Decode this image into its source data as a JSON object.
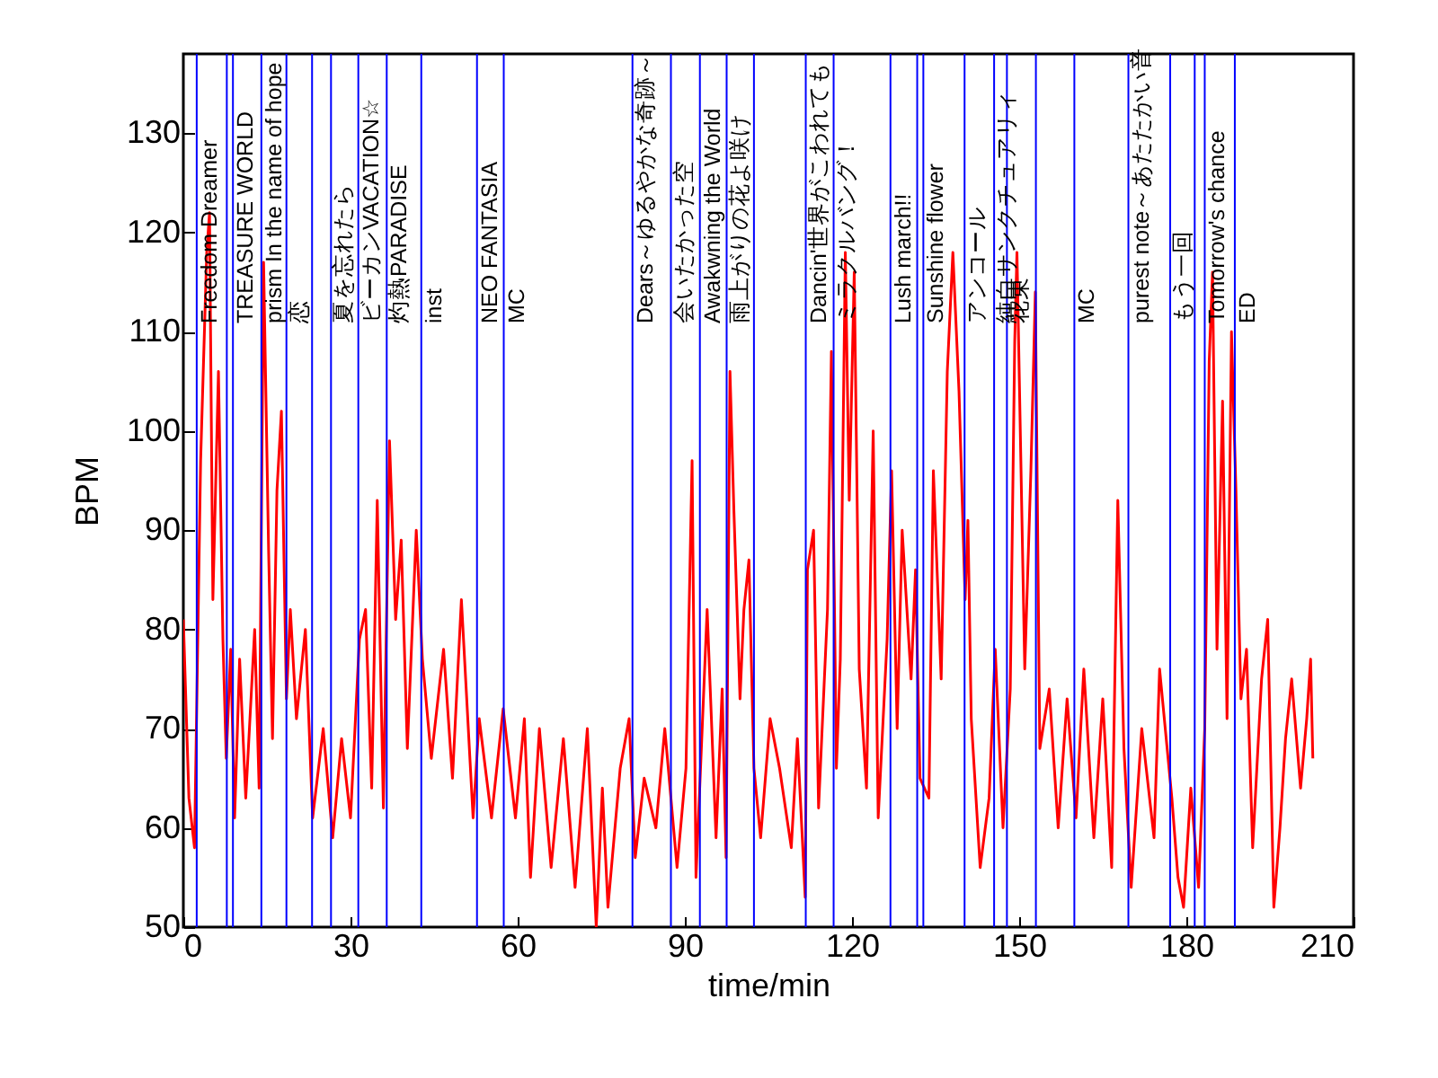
{
  "chart_data": {
    "type": "line",
    "xlabel": "time/min",
    "ylabel": "BPM",
    "xlim": [
      0,
      210
    ],
    "ylim": [
      50,
      138
    ],
    "xticks": [
      0,
      30,
      60,
      90,
      120,
      150,
      180,
      210
    ],
    "yticks": [
      50,
      60,
      70,
      80,
      90,
      100,
      110,
      120,
      130
    ],
    "series": [
      {
        "color": "#ff0000",
        "x": [
          0,
          1.0,
          2.0,
          3.1,
          4.2,
          4.7,
          5.3,
          6.3,
          7.1,
          7.7,
          8.5,
          9.2,
          10.1,
          11.2,
          12.8,
          13.6,
          14.4,
          15.3,
          16.0,
          16.8,
          17.6,
          18.5,
          19.2,
          20.3,
          21.9,
          23.2,
          25.1,
          26.8,
          28.4,
          30.0,
          31.6,
          32.7,
          33.8,
          34.8,
          35.9,
          37.0,
          38.1,
          39.1,
          40.2,
          41.8,
          42.9,
          44.5,
          46.7,
          48.3,
          49.9,
          52.0,
          53.1,
          55.3,
          57.4,
          59.6,
          61.2,
          62.3,
          63.9,
          66.0,
          68.2,
          70.3,
          72.5,
          74.1,
          75.2,
          76.2,
          78.4,
          80.0,
          81.1,
          82.7,
          84.8,
          86.4,
          88.6,
          90.2,
          91.3,
          92.0,
          94.0,
          95.6,
          96.7,
          97.4,
          98.1,
          98.8,
          99.9,
          100.6,
          101.5,
          102.4,
          103.6,
          105.3,
          107.0,
          109.1,
          110.2,
          111.6,
          112.0,
          113.1,
          114.0,
          115.6,
          116.3,
          117.2,
          117.9,
          118.8,
          119.5,
          120.4,
          121.3,
          122.6,
          123.8,
          124.7,
          126.3,
          127.1,
          128.1,
          129.0,
          130.6,
          131.4,
          132.2,
          133.8,
          134.6,
          136.0,
          137.1,
          138.1,
          139.2,
          140.3,
          140.8,
          141.4,
          143.0,
          144.6,
          145.7,
          147.1,
          148.4,
          149.2,
          149.6,
          151.0,
          152.1,
          152.9,
          153.7,
          155.4,
          157.0,
          158.6,
          160.2,
          161.6,
          163.4,
          165.0,
          166.6,
          167.7,
          168.8,
          170.1,
          172.0,
          174.2,
          175.2,
          177.4,
          178.5,
          179.5,
          180.8,
          182.2,
          183.3,
          184.1,
          184.7,
          185.5,
          186.5,
          187.3,
          188.1,
          188.9,
          189.8,
          190.8,
          191.9,
          193.5,
          194.6,
          195.7,
          196.8,
          197.8,
          198.9,
          200.5,
          201.6,
          202.3,
          202.7
        ],
        "values": [
          81,
          63,
          58,
          97,
          118,
          122,
          83,
          106,
          79,
          67,
          78,
          61,
          77,
          63,
          80,
          64,
          117,
          88,
          69,
          94,
          102,
          73,
          82,
          71,
          80,
          61,
          70,
          59,
          69,
          61,
          79,
          82,
          64,
          93,
          62,
          99,
          81,
          89,
          68,
          90,
          77,
          67,
          78,
          65,
          83,
          61,
          71,
          61,
          72,
          61,
          71,
          55,
          70,
          56,
          69,
          54,
          70,
          50,
          64,
          52,
          66,
          71,
          57,
          65,
          60,
          70,
          56,
          66,
          97,
          55,
          82,
          59,
          74,
          57,
          106,
          92,
          73,
          82,
          87,
          66,
          59,
          71,
          66,
          58,
          69,
          53,
          86,
          90,
          62,
          82,
          108,
          66,
          77,
          118,
          93,
          116,
          76,
          64,
          100,
          61,
          79,
          96,
          70,
          90,
          75,
          86,
          65,
          63,
          96,
          75,
          106,
          118,
          104,
          83,
          91,
          71,
          56,
          63,
          78,
          60,
          74,
          109,
          118,
          76,
          96,
          114,
          68,
          74,
          60,
          73,
          61,
          76,
          59,
          73,
          56,
          93,
          68,
          54,
          70,
          59,
          76,
          63,
          55,
          52,
          64,
          54,
          70,
          107,
          116,
          78,
          103,
          71,
          110,
          94,
          73,
          78,
          58,
          75,
          81,
          52,
          60,
          69,
          75,
          64,
          71,
          77,
          67
        ]
      }
    ],
    "ref_lines": [
      {
        "axis": "x",
        "value": 2.4,
        "label": "Freedom Dreamer",
        "color": "#0000ff"
      },
      {
        "axis": "x",
        "value": 7.8,
        "label": null,
        "color": "#0000ff"
      },
      {
        "axis": "x",
        "value": 8.9,
        "label": "TREASURE WORLD",
        "color": "#0000ff"
      },
      {
        "axis": "x",
        "value": 14.0,
        "label": "prism In the name of hope",
        "color": "#0000ff"
      },
      {
        "axis": "x",
        "value": 18.5,
        "label": "恋",
        "color": "#0000ff"
      },
      {
        "axis": "x",
        "value": 23.1,
        "label": null,
        "color": "#0000ff"
      },
      {
        "axis": "x",
        "value": 26.5,
        "label": "夏を忘れたら",
        "color": "#0000ff"
      },
      {
        "axis": "x",
        "value": 31.4,
        "label": "ビーカンVACATION☆",
        "color": "#0000ff"
      },
      {
        "axis": "x",
        "value": 36.5,
        "label": "灼熱PARADISE",
        "color": "#0000ff"
      },
      {
        "axis": "x",
        "value": 42.7,
        "label": "inst",
        "color": "#0000ff"
      },
      {
        "axis": "x",
        "value": 52.7,
        "label": "NEO FANTASIA",
        "color": "#0000ff"
      },
      {
        "axis": "x",
        "value": 57.5,
        "label": "MC",
        "color": "#0000ff"
      },
      {
        "axis": "x",
        "value": 80.6,
        "label": "Dears～ゆるやかな奇跡～",
        "color": "#0000ff"
      },
      {
        "axis": "x",
        "value": 87.5,
        "label": "会いたかった空",
        "color": "#0000ff"
      },
      {
        "axis": "x",
        "value": 92.7,
        "label": "Awakwning the World",
        "color": "#0000ff"
      },
      {
        "axis": "x",
        "value": 97.5,
        "label": "雨上がりの花よ咲け",
        "color": "#0000ff"
      },
      {
        "axis": "x",
        "value": 102.4,
        "label": null,
        "color": "#0000ff"
      },
      {
        "axis": "x",
        "value": 111.7,
        "label": "Dancin'世界がこわれても",
        "color": "#0000ff"
      },
      {
        "axis": "x",
        "value": 116.7,
        "label": "ミラクルバング！",
        "color": "#0000ff"
      },
      {
        "axis": "x",
        "value": 126.9,
        "label": "Lush march!!",
        "color": "#0000ff"
      },
      {
        "axis": "x",
        "value": 131.7,
        "label": null,
        "color": "#0000ff"
      },
      {
        "axis": "x",
        "value": 132.8,
        "label": "Sunshine flower",
        "color": "#0000ff"
      },
      {
        "axis": "x",
        "value": 140.2,
        "label": "アンコール",
        "color": "#0000ff"
      },
      {
        "axis": "x",
        "value": 145.5,
        "label": "純白サンクチュアリィ",
        "color": "#0000ff"
      },
      {
        "axis": "x",
        "value": 147.8,
        "label": "花束",
        "color": "#0000ff"
      },
      {
        "axis": "x",
        "value": 153.0,
        "label": null,
        "color": "#0000ff"
      },
      {
        "axis": "x",
        "value": 159.9,
        "label": "MC",
        "color": "#0000ff"
      },
      {
        "axis": "x",
        "value": 169.6,
        "label": "purest note～あたたかい音",
        "color": "#0000ff"
      },
      {
        "axis": "x",
        "value": 177.1,
        "label": "もう一回",
        "color": "#0000ff"
      },
      {
        "axis": "x",
        "value": 181.5,
        "label": null,
        "color": "#0000ff"
      },
      {
        "axis": "x",
        "value": 183.3,
        "label": "Tomorrow's chance",
        "color": "#0000ff"
      },
      {
        "axis": "x",
        "value": 188.7,
        "label": "ED",
        "color": "#0000ff"
      }
    ]
  }
}
